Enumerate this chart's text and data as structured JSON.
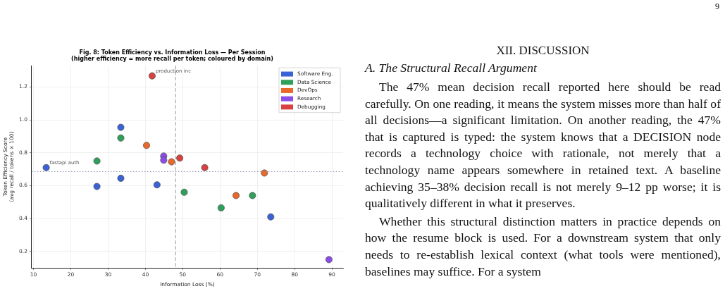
{
  "chart_data": {
    "type": "scatter",
    "title": "Fig. 8: Token Efficiency vs. Information Loss — Per Session",
    "subtitle": "(higher efficiency = more recall per token; coloured by domain)",
    "xlabel": "Information Loss (%)",
    "ylabel": "Token Efficiency Score\n(avg recall / tokens × 100)",
    "xlim": [
      9.5,
      93
    ],
    "xticks": [
      10,
      20,
      30,
      40,
      50,
      60,
      70,
      80,
      90
    ],
    "ylim": [
      0.1,
      1.33
    ],
    "yticks": [
      0.2,
      0.4,
      0.6,
      0.8,
      {
        "value": 1.0,
        "label": "1.0"
      },
      1.2
    ],
    "grid": true,
    "legend": "top right",
    "marker": "circle",
    "series": [
      {
        "name": "Software Eng.",
        "color": "#3a62d6",
        "x": [
          13.4,
          27.0,
          33.4,
          33.4,
          43.1,
          73.6
        ],
        "values": [
          0.71,
          0.595,
          0.955,
          0.645,
          0.605,
          0.41
        ]
      },
      {
        "name": "Data Science",
        "color": "#2ea05a",
        "x": [
          27.0,
          33.4,
          50.4,
          60.3,
          68.7
        ],
        "values": [
          0.75,
          0.89,
          0.56,
          0.465,
          0.54
        ]
      },
      {
        "name": "DevOps",
        "color": "#e8692a",
        "x": [
          40.3,
          47.0,
          64.3,
          71.9
        ],
        "values": [
          0.845,
          0.745,
          0.54,
          0.677
        ]
      },
      {
        "name": "Research",
        "color": "#8a4de8",
        "x": [
          44.9,
          44.9,
          89.2
        ],
        "values": [
          0.78,
          0.755,
          0.15
        ]
      },
      {
        "name": "Debugging",
        "color": "#d94040",
        "x": [
          41.8,
          49.2,
          55.9
        ],
        "values": [
          1.268,
          0.768,
          0.71
        ]
      }
    ],
    "ref_lines": [
      {
        "axis": "x",
        "value": 48.1,
        "color": "#999999",
        "line_style": "dashed"
      },
      {
        "axis": "y",
        "value": 0.686,
        "color": "#8888aa",
        "line_style": "dotted"
      }
    ],
    "annotations": [
      {
        "text": "production inc",
        "x": 41.8,
        "y": 1.268
      },
      {
        "text": "fastapi auth",
        "x": 13.4,
        "y": 0.71
      },
      "9",
      "XII. DISCUSSION",
      "A. The Structural Recall Argument",
      "The 47% mean decision recall reported here should be read carefully. On one reading, it means the system misses more than half of all decisions—a significant limitation. On another reading, the 47% that is captured is typed: the system knows that a DECISION node records a technology choice with rationale, not merely that a technology name appears somewhere in retained text. A baseline achieving 35–38% decision recall is not merely 9–12 pp worse; it is qualitatively different in what it preserves.",
      "Whether this structural distinction matters in practice depends on how the resume block is used. For a downstream system that only needs to re-establish lexical context (what tools were mentioned), baselines may suffice. For a system"
    ]
  }
}
